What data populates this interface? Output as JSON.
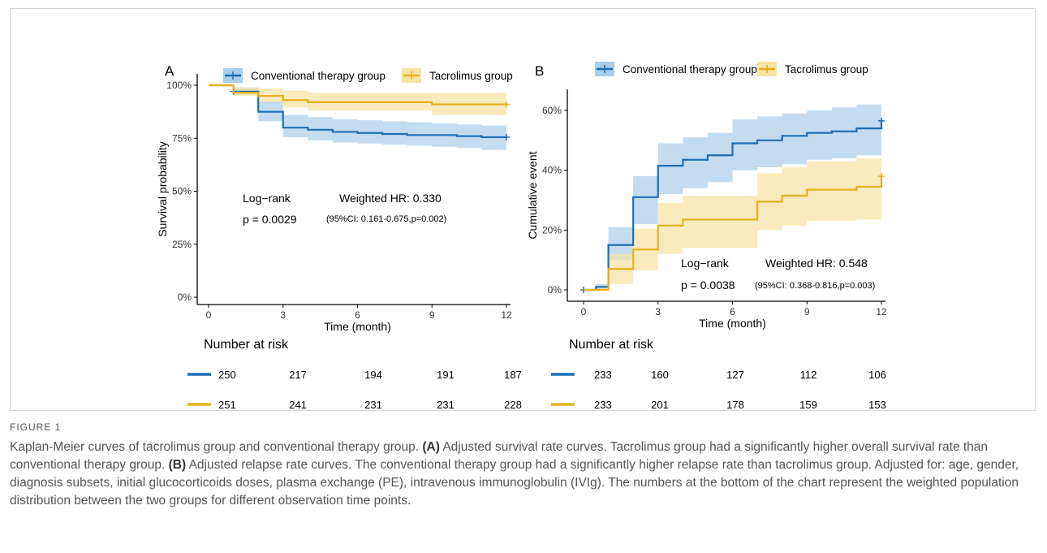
{
  "figure": {
    "label": "FIGURE 1",
    "caption": [
      {
        "t": "Kaplan-Meier curves of tacrolimus group and conventional therapy group. ",
        "b": false
      },
      {
        "t": "(A)",
        "b": true
      },
      {
        "t": " Adjusted survival rate curves. Tacrolimus group had a significantly higher overall survival rate than conventional therapy group. ",
        "b": false
      },
      {
        "t": "(B)",
        "b": true
      },
      {
        "t": " Adjusted relapse rate curves. The conventional therapy group had a significantly higher relapse rate than tacrolimus group. Adjusted for: age, gender, diagnosis subsets, initial glucocorticoids doses, plasma exchange (PE), intravenous immunoglobulin (IVIg). The numbers at the bottom of the chart represent the weighted population distribution between the two groups for different observation time points.",
        "b": false
      }
    ]
  },
  "colors": {
    "conventional": "#1f6fb4",
    "tacrolimus": "#e6b21f",
    "conventional_band": "#a9cdea",
    "tacrolimus_band": "#f7e3a3"
  },
  "chart_data": [
    {
      "panel": "A",
      "type": "line",
      "subtype": "step",
      "xlabel": "Time (month)",
      "ylabel": "Survival probability",
      "x_ticks": [
        0,
        3,
        6,
        9,
        12
      ],
      "y_ticks": [
        "0%",
        "25%",
        "50%",
        "75%",
        "100%"
      ],
      "xlim": [
        0,
        12
      ],
      "ylim": [
        0,
        1
      ],
      "legend": [
        "Conventional therapy group",
        "Tacrolimus group"
      ],
      "legend_position": "top",
      "series": [
        {
          "name": "Conventional therapy group",
          "color_key": "conventional",
          "x": [
            0,
            1,
            2,
            3,
            4,
            5,
            6,
            7,
            8,
            9,
            10,
            11,
            12
          ],
          "y": [
            1.0,
            0.97,
            0.875,
            0.8,
            0.79,
            0.78,
            0.775,
            0.77,
            0.765,
            0.765,
            0.76,
            0.755,
            0.755
          ],
          "lower": [
            1.0,
            0.955,
            0.83,
            0.755,
            0.74,
            0.73,
            0.725,
            0.72,
            0.715,
            0.71,
            0.705,
            0.695,
            0.69
          ],
          "upper": [
            1.0,
            0.99,
            0.925,
            0.86,
            0.85,
            0.84,
            0.835,
            0.83,
            0.825,
            0.82,
            0.815,
            0.81,
            0.81
          ],
          "censor_x": [
            1,
            12
          ]
        },
        {
          "name": "Tacrolimus group",
          "color_key": "tacrolimus",
          "x": [
            0,
            1,
            2,
            3,
            4,
            5,
            6,
            7,
            8,
            9,
            10,
            11,
            12
          ],
          "y": [
            1.0,
            0.965,
            0.95,
            0.93,
            0.92,
            0.92,
            0.92,
            0.92,
            0.92,
            0.91,
            0.91,
            0.91,
            0.91
          ],
          "lower": [
            1.0,
            0.95,
            0.92,
            0.895,
            0.88,
            0.88,
            0.88,
            0.88,
            0.88,
            0.86,
            0.86,
            0.86,
            0.86
          ],
          "upper": [
            1.0,
            0.99,
            0.985,
            0.975,
            0.965,
            0.965,
            0.965,
            0.965,
            0.965,
            0.965,
            0.965,
            0.965,
            0.965
          ],
          "censor_x": [
            12
          ]
        }
      ],
      "annotations": {
        "test": "Log−rank",
        "p": "p =  0.0029",
        "hr": "Weighted HR: 0.330",
        "ci": "(95%CI: 0.161-0.675,p=0.002)"
      },
      "risk_table": {
        "title": "Number at risk",
        "rows": [
          {
            "color_key": "conventional",
            "values": [
              "250",
              "217",
              "194",
              "191",
              "187"
            ]
          },
          {
            "color_key": "tacrolimus",
            "values": [
              "251",
              "241",
              "231",
              "231",
              "228"
            ]
          }
        ]
      }
    },
    {
      "panel": "B",
      "type": "line",
      "subtype": "step",
      "xlabel": "Time (month)",
      "ylabel": "Cumulative event",
      "x_ticks": [
        0,
        3,
        6,
        9,
        12
      ],
      "y_ticks": [
        "0%",
        "20%",
        "40%",
        "60%"
      ],
      "xlim": [
        0,
        12
      ],
      "ylim": [
        0,
        0.6
      ],
      "legend": [
        "Conventional therapy group",
        "Tacrolimus group"
      ],
      "legend_position": "top",
      "series": [
        {
          "name": "Conventional therapy group",
          "color_key": "conventional",
          "x": [
            0,
            0.5,
            1,
            2,
            3,
            4,
            5,
            6,
            7,
            8,
            9,
            10,
            11,
            12
          ],
          "y": [
            0.0,
            0.01,
            0.15,
            0.31,
            0.415,
            0.435,
            0.45,
            0.49,
            0.5,
            0.515,
            0.525,
            0.53,
            0.54,
            0.565
          ],
          "lower": [
            0.0,
            0.0,
            0.1,
            0.22,
            0.32,
            0.34,
            0.36,
            0.4,
            0.41,
            0.42,
            0.435,
            0.44,
            0.45,
            0.45
          ],
          "upper": [
            0.0,
            0.02,
            0.21,
            0.38,
            0.49,
            0.51,
            0.525,
            0.57,
            0.58,
            0.59,
            0.6,
            0.61,
            0.62,
            0.62
          ],
          "censor_x": [
            0,
            12
          ]
        },
        {
          "name": "Tacrolimus group",
          "color_key": "tacrolimus",
          "x": [
            0,
            0.5,
            1,
            2,
            3,
            4,
            5,
            6,
            7,
            8,
            9,
            10,
            11,
            12
          ],
          "y": [
            0.0,
            0.0,
            0.07,
            0.135,
            0.215,
            0.235,
            0.235,
            0.235,
            0.295,
            0.315,
            0.335,
            0.335,
            0.345,
            0.38
          ],
          "lower": [
            0.0,
            0.0,
            0.02,
            0.065,
            0.12,
            0.14,
            0.14,
            0.14,
            0.2,
            0.215,
            0.23,
            0.23,
            0.235,
            0.235
          ],
          "upper": [
            0.0,
            0.01,
            0.12,
            0.205,
            0.29,
            0.315,
            0.315,
            0.315,
            0.39,
            0.41,
            0.43,
            0.43,
            0.44,
            0.44
          ],
          "censor_x": [
            12
          ]
        }
      ],
      "annotations": {
        "test": "Log−rank",
        "p": "p =  0.0038",
        "hr": "Weighted HR: 0.548",
        "ci": "(95%CI: 0.368-0.816,p=0.003)"
      },
      "risk_table": {
        "title": "Number at risk",
        "rows": [
          {
            "color_key": "conventional",
            "values": [
              "233",
              "160",
              "127",
              "112",
              "106"
            ]
          },
          {
            "color_key": "tacrolimus",
            "values": [
              "233",
              "201",
              "178",
              "159",
              "153"
            ]
          }
        ]
      }
    }
  ]
}
